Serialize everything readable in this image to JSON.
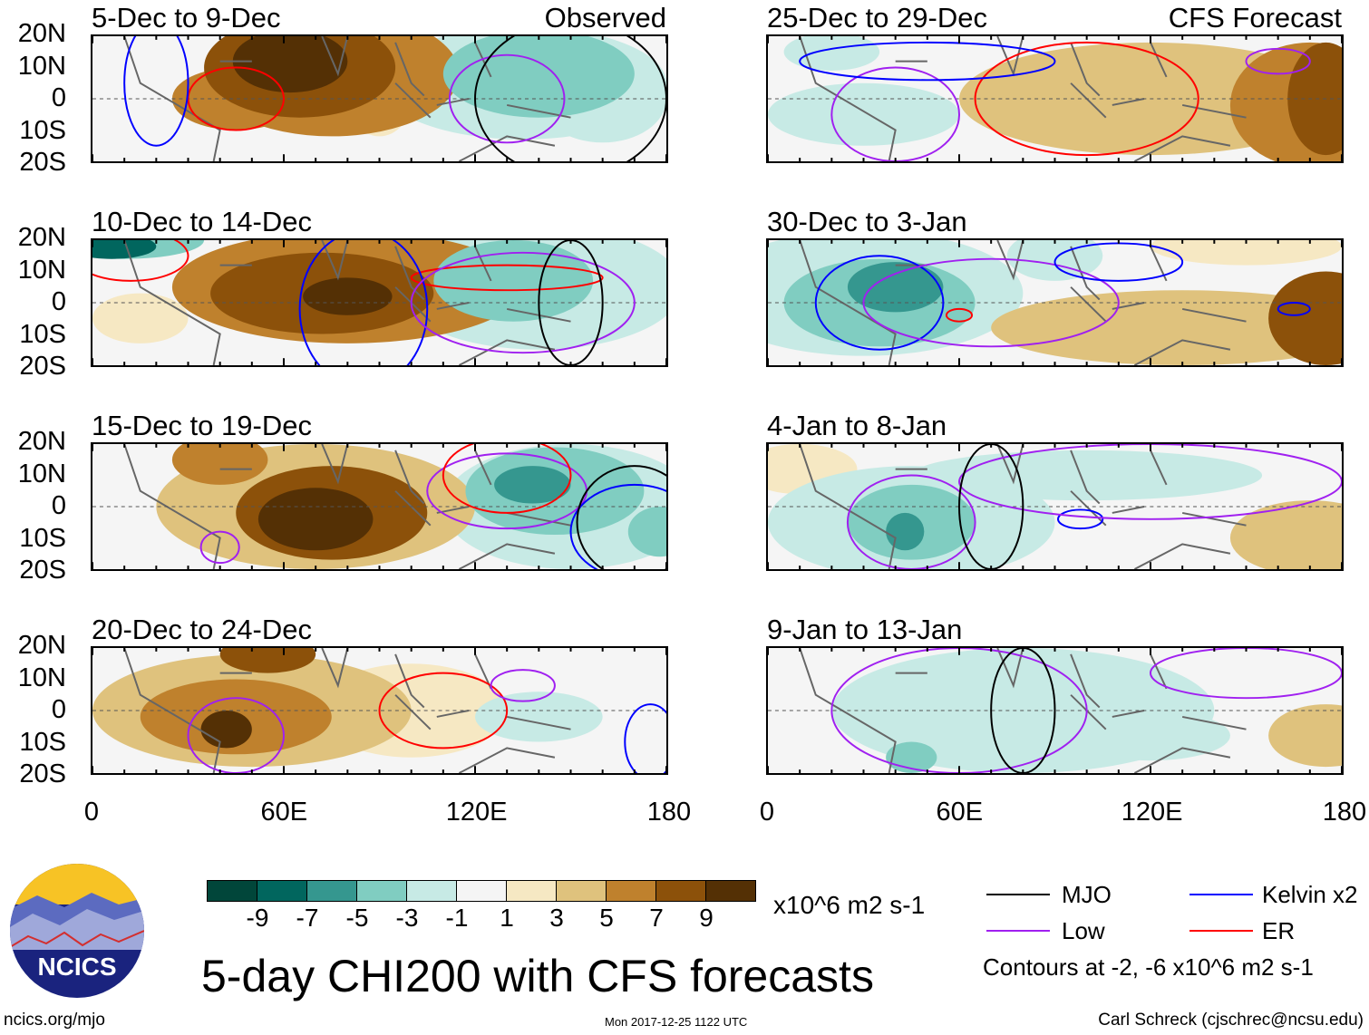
{
  "chart_data": {
    "type": "heatmap",
    "title": "5-day CHI200 with CFS forecasts",
    "units": "x10^6 m2 s-1",
    "lon_ticks": [
      "0",
      "60E",
      "120E",
      "180"
    ],
    "lat_ticks": [
      "20N",
      "10N",
      "0",
      "10S",
      "20S"
    ],
    "lon_range": [
      0,
      180
    ],
    "lat_range": [
      -20,
      20
    ],
    "columns": [
      "Observed",
      "CFS Forecast"
    ],
    "panels": [
      {
        "title": "5-Dec to 9-Dec",
        "label": "Observed"
      },
      {
        "title": "10-Dec to 14-Dec",
        "label": ""
      },
      {
        "title": "15-Dec to 19-Dec",
        "label": ""
      },
      {
        "title": "20-Dec to 24-Dec",
        "label": ""
      },
      {
        "title": "25-Dec to 29-Dec",
        "label": "CFS Forecast"
      },
      {
        "title": "30-Dec to 3-Jan",
        "label": ""
      },
      {
        "title": "4-Jan to 8-Jan",
        "label": ""
      },
      {
        "title": "9-Jan to 13-Jan",
        "label": ""
      }
    ],
    "colorbar": {
      "labels": [
        "-9",
        "-7",
        "-5",
        "-3",
        "-1",
        "1",
        "3",
        "5",
        "7",
        "9"
      ],
      "colors": [
        "#01463a",
        "#01665e",
        "#35978f",
        "#80cdc1",
        "#c7eae5",
        "#f5f5f5",
        "#f6e8c3",
        "#dfc27d",
        "#bf812d",
        "#8c510a",
        "#543005"
      ]
    },
    "legend": [
      {
        "label": "MJO",
        "color": "#000000"
      },
      {
        "label": "Kelvin x2",
        "color": "#0000ff"
      },
      {
        "label": "Low",
        "color": "#a020f0"
      },
      {
        "label": "ER",
        "color": "#ff0000"
      }
    ],
    "contour_note": "Contours at -2, -6 x10^6 m2 s-1"
  },
  "logo": {
    "text": "NCICS"
  },
  "footer": {
    "url": "ncics.org/mjo",
    "timestamp": "Mon 2017-12-25 1122 UTC",
    "author": "Carl Schreck (cjschrec@ncsu.edu)"
  }
}
